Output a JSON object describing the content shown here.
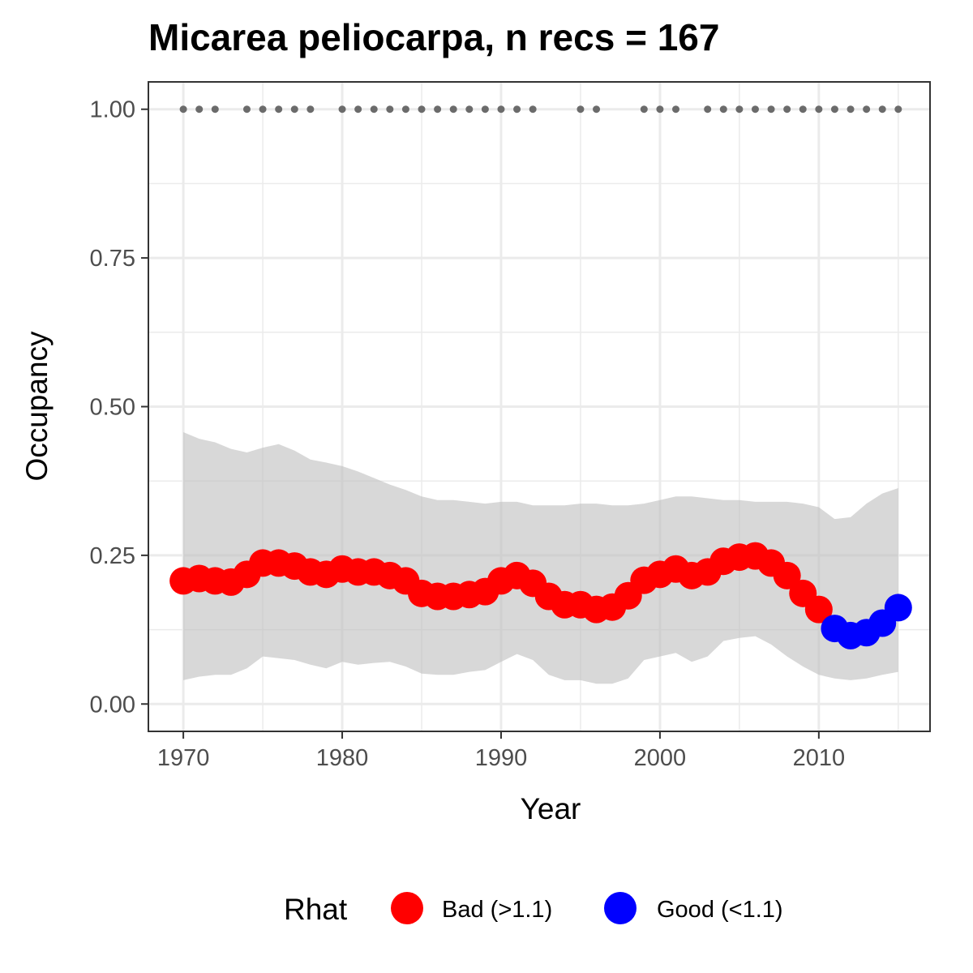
{
  "chart_data": {
    "type": "line",
    "title": "Micarea peliocarpa, n recs = 167",
    "xlabel": "Year",
    "ylabel": "Occupancy",
    "xlim": [
      1967.8,
      2017.0
    ],
    "ylim": [
      -0.046,
      1.046
    ],
    "x_ticks": [
      1970,
      1980,
      1990,
      2000,
      2010
    ],
    "x_tick_labels": [
      "1970",
      "1980",
      "1990",
      "2000",
      "2010"
    ],
    "y_ticks": [
      0.0,
      0.25,
      0.5,
      0.75,
      1.0
    ],
    "y_tick_labels": [
      "0.00",
      "0.25",
      "0.50",
      "0.75",
      "1.00"
    ],
    "grid": true,
    "years": [
      1970,
      1971,
      1972,
      1973,
      1974,
      1975,
      1976,
      1977,
      1978,
      1979,
      1980,
      1981,
      1982,
      1983,
      1984,
      1985,
      1986,
      1987,
      1988,
      1989,
      1990,
      1991,
      1992,
      1993,
      1994,
      1995,
      1996,
      1997,
      1998,
      1999,
      2000,
      2001,
      2002,
      2003,
      2004,
      2005,
      2006,
      2007,
      2008,
      2009,
      2010,
      2011,
      2012,
      2013,
      2014,
      2015
    ],
    "occupancy": [
      0.207,
      0.211,
      0.207,
      0.205,
      0.218,
      0.237,
      0.237,
      0.232,
      0.222,
      0.218,
      0.227,
      0.222,
      0.222,
      0.216,
      0.207,
      0.186,
      0.181,
      0.181,
      0.184,
      0.189,
      0.207,
      0.216,
      0.203,
      0.181,
      0.167,
      0.167,
      0.159,
      0.163,
      0.182,
      0.208,
      0.218,
      0.227,
      0.216,
      0.222,
      0.24,
      0.247,
      0.249,
      0.237,
      0.216,
      0.186,
      0.159,
      0.127,
      0.115,
      0.12,
      0.136,
      0.162
    ],
    "ci_lower": [
      0.04,
      0.046,
      0.049,
      0.049,
      0.06,
      0.08,
      0.077,
      0.074,
      0.066,
      0.06,
      0.071,
      0.066,
      0.069,
      0.071,
      0.063,
      0.051,
      0.049,
      0.049,
      0.054,
      0.057,
      0.071,
      0.084,
      0.074,
      0.049,
      0.04,
      0.04,
      0.034,
      0.034,
      0.043,
      0.074,
      0.08,
      0.086,
      0.071,
      0.08,
      0.106,
      0.111,
      0.114,
      0.1,
      0.08,
      0.063,
      0.049,
      0.043,
      0.04,
      0.043,
      0.049,
      0.054
    ],
    "ci_upper": [
      0.457,
      0.446,
      0.44,
      0.429,
      0.423,
      0.431,
      0.437,
      0.426,
      0.411,
      0.406,
      0.4,
      0.391,
      0.38,
      0.369,
      0.36,
      0.349,
      0.343,
      0.343,
      0.34,
      0.337,
      0.34,
      0.34,
      0.334,
      0.334,
      0.334,
      0.337,
      0.337,
      0.334,
      0.334,
      0.337,
      0.343,
      0.349,
      0.349,
      0.346,
      0.343,
      0.343,
      0.34,
      0.34,
      0.34,
      0.337,
      0.331,
      0.311,
      0.314,
      0.337,
      0.354,
      0.363
    ],
    "rhat_class": [
      "bad",
      "bad",
      "bad",
      "bad",
      "bad",
      "bad",
      "bad",
      "bad",
      "bad",
      "bad",
      "bad",
      "bad",
      "bad",
      "bad",
      "bad",
      "bad",
      "bad",
      "bad",
      "bad",
      "bad",
      "bad",
      "bad",
      "bad",
      "bad",
      "bad",
      "bad",
      "bad",
      "bad",
      "bad",
      "bad",
      "bad",
      "bad",
      "bad",
      "bad",
      "bad",
      "bad",
      "bad",
      "bad",
      "bad",
      "bad",
      "bad",
      "good",
      "good",
      "good",
      "good",
      "good"
    ],
    "record_years": [
      1970,
      1971,
      1972,
      1974,
      1975,
      1976,
      1977,
      1978,
      1980,
      1981,
      1982,
      1983,
      1984,
      1985,
      1986,
      1987,
      1988,
      1989,
      1990,
      1991,
      1992,
      1995,
      1996,
      1999,
      2000,
      2001,
      2003,
      2004,
      2005,
      2006,
      2007,
      2008,
      2009,
      2010,
      2011,
      2012,
      2013,
      2014,
      2015
    ],
    "record_value": 1.0,
    "legend": {
      "title": "Rhat",
      "position": "bottom",
      "entries": [
        {
          "key": "bad",
          "label": "Bad (>1.1)",
          "color": "#ff0000"
        },
        {
          "key": "good",
          "label": "Good (<1.1)",
          "color": "#0000ff"
        }
      ]
    },
    "colors": {
      "ribbon": "#bebebe",
      "record_points": "#6b6b6b",
      "grid": "#ebebeb",
      "panel_border": "#333333"
    }
  }
}
